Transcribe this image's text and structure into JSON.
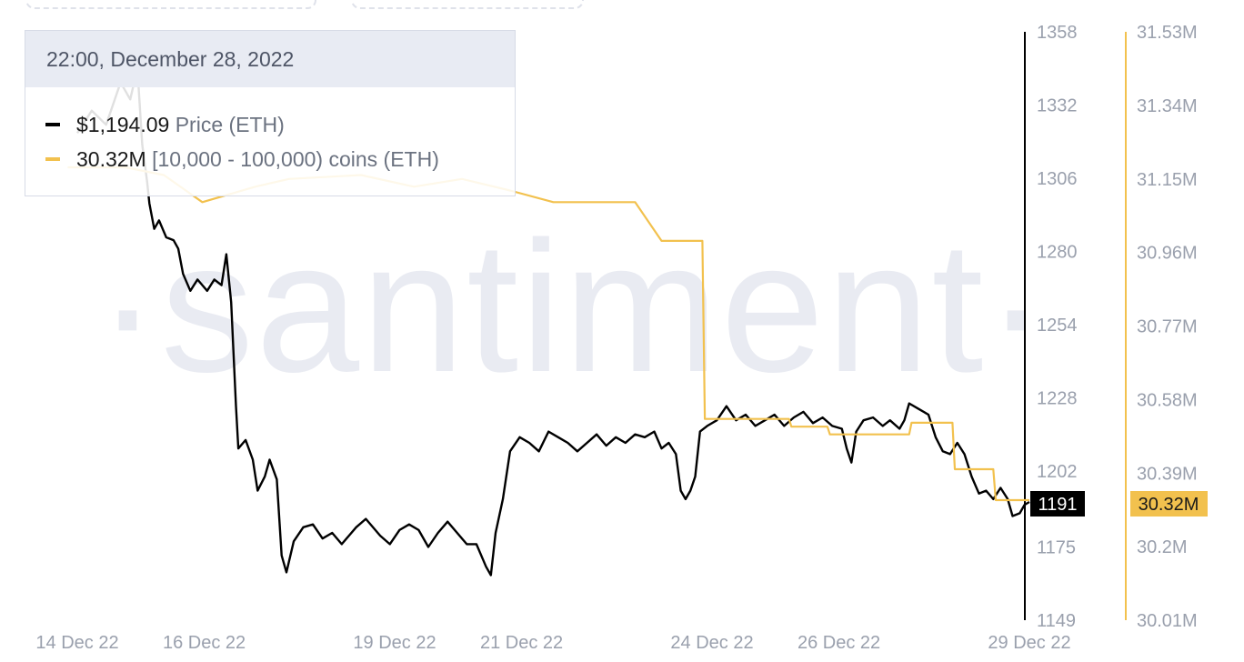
{
  "tooltip": {
    "datetime": "22:00, December 28, 2022",
    "rows": [
      {
        "value": "$1,194.09",
        "metric": "Price (ETH)",
        "color": "#000000"
      },
      {
        "value": "30.32M",
        "metric": "[10,000 - 100,000) coins (ETH)",
        "color": "#f2c14e"
      }
    ]
  },
  "watermark": "·santiment·",
  "chart_data": {
    "type": "line",
    "x_ticks": [
      "14 Dec 22",
      "16 Dec 22",
      "19 Dec 22",
      "21 Dec 22",
      "24 Dec 22",
      "26 Dec 22",
      "29 Dec 22"
    ],
    "x_range": [
      "2022-12-14",
      "2022-12-29"
    ],
    "left_axis": {
      "ticks": [
        "1358",
        "1332",
        "1306",
        "1280",
        "1254",
        "1228",
        "1202",
        "1175",
        "1149"
      ],
      "ylim": [
        1149,
        1358
      ],
      "color": "#000000"
    },
    "right_axis": {
      "ticks": [
        "31.53M",
        "31.34M",
        "31.15M",
        "30.96M",
        "30.77M",
        "30.58M",
        "30.39M",
        "30.2M",
        "30.01M"
      ],
      "ylim": [
        30.01,
        31.53
      ],
      "unit": "M",
      "color": "#f2c14e"
    },
    "current_values": {
      "price": "1191",
      "holders": "30.32M"
    },
    "series": [
      {
        "name": "Price (ETH)",
        "axis": "left",
        "color": "#000000",
        "points": [
          [
            0.0,
            1322
          ],
          [
            0.3,
            1330
          ],
          [
            0.6,
            1325
          ],
          [
            0.9,
            1340
          ],
          [
            1.1,
            1334
          ],
          [
            1.25,
            1345
          ],
          [
            1.35,
            1318
          ],
          [
            1.45,
            1305
          ],
          [
            1.5,
            1297
          ],
          [
            1.6,
            1288
          ],
          [
            1.7,
            1291
          ],
          [
            1.85,
            1285
          ],
          [
            2.0,
            1284
          ],
          [
            2.1,
            1281
          ],
          [
            2.2,
            1272
          ],
          [
            2.35,
            1266
          ],
          [
            2.5,
            1270
          ],
          [
            2.7,
            1266
          ],
          [
            2.85,
            1270
          ],
          [
            3.0,
            1268
          ],
          [
            3.1,
            1279
          ],
          [
            3.2,
            1262
          ],
          [
            3.3,
            1225
          ],
          [
            3.35,
            1210
          ],
          [
            3.5,
            1213
          ],
          [
            3.65,
            1206
          ],
          [
            3.75,
            1195
          ],
          [
            3.9,
            1200
          ],
          [
            4.0,
            1206
          ],
          [
            4.15,
            1199
          ],
          [
            4.25,
            1172
          ],
          [
            4.35,
            1166
          ],
          [
            4.5,
            1177
          ],
          [
            4.7,
            1182
          ],
          [
            4.9,
            1183
          ],
          [
            5.1,
            1178
          ],
          [
            5.3,
            1180
          ],
          [
            5.5,
            1176
          ],
          [
            5.8,
            1182
          ],
          [
            6.0,
            1185
          ],
          [
            6.3,
            1179
          ],
          [
            6.5,
            1176
          ],
          [
            6.7,
            1181
          ],
          [
            6.9,
            1183
          ],
          [
            7.1,
            1181
          ],
          [
            7.3,
            1175
          ],
          [
            7.5,
            1180
          ],
          [
            7.7,
            1184
          ],
          [
            7.9,
            1180
          ],
          [
            8.1,
            1176
          ],
          [
            8.3,
            1176
          ],
          [
            8.5,
            1168
          ],
          [
            8.6,
            1165
          ],
          [
            8.7,
            1180
          ],
          [
            8.85,
            1192
          ],
          [
            9.0,
            1209
          ],
          [
            9.2,
            1214
          ],
          [
            9.4,
            1212
          ],
          [
            9.6,
            1209
          ],
          [
            9.8,
            1216
          ],
          [
            10.0,
            1214
          ],
          [
            10.2,
            1212
          ],
          [
            10.4,
            1209
          ],
          [
            10.6,
            1212
          ],
          [
            10.8,
            1215
          ],
          [
            11.0,
            1211
          ],
          [
            11.2,
            1214
          ],
          [
            11.4,
            1212
          ],
          [
            11.6,
            1215
          ],
          [
            11.8,
            1214
          ],
          [
            12.0,
            1216
          ],
          [
            12.15,
            1210
          ],
          [
            12.3,
            1212
          ],
          [
            12.45,
            1208
          ],
          [
            12.55,
            1195
          ],
          [
            12.65,
            1192
          ],
          [
            12.75,
            1195
          ],
          [
            12.85,
            1200
          ],
          [
            12.95,
            1216
          ],
          [
            13.1,
            1218
          ],
          [
            13.3,
            1220
          ],
          [
            13.5,
            1225
          ],
          [
            13.7,
            1220
          ],
          [
            13.9,
            1222
          ],
          [
            14.1,
            1218
          ],
          [
            14.3,
            1220
          ],
          [
            14.5,
            1222
          ],
          [
            14.7,
            1218
          ],
          [
            14.9,
            1221
          ],
          [
            15.1,
            1223
          ],
          [
            15.3,
            1219
          ],
          [
            15.5,
            1221
          ],
          [
            15.7,
            1218
          ],
          [
            15.9,
            1217
          ],
          [
            16.0,
            1210
          ],
          [
            16.1,
            1205
          ],
          [
            16.2,
            1216
          ],
          [
            16.35,
            1220
          ],
          [
            16.55,
            1221
          ],
          [
            16.75,
            1218
          ],
          [
            16.9,
            1220
          ],
          [
            17.1,
            1217
          ],
          [
            17.2,
            1220
          ],
          [
            17.3,
            1226
          ],
          [
            17.5,
            1224
          ],
          [
            17.7,
            1222
          ],
          [
            17.85,
            1214
          ],
          [
            18.0,
            1209
          ],
          [
            18.15,
            1208
          ],
          [
            18.3,
            1212
          ],
          [
            18.45,
            1208
          ],
          [
            18.6,
            1200
          ],
          [
            18.75,
            1194
          ],
          [
            18.9,
            1195
          ],
          [
            19.05,
            1192
          ],
          [
            19.2,
            1196
          ],
          [
            19.35,
            1192
          ],
          [
            19.45,
            1186
          ],
          [
            19.6,
            1187
          ],
          [
            19.7,
            1190
          ],
          [
            19.8,
            1191
          ]
        ]
      },
      {
        "name": "[10,000 - 100,000) coins (ETH)",
        "axis": "right",
        "color": "#f2c14e",
        "points": [
          [
            -0.2,
            31.18
          ],
          [
            1.0,
            31.18
          ],
          [
            1.8,
            31.16
          ],
          [
            2.6,
            31.09
          ],
          [
            3.7,
            31.13
          ],
          [
            4.4,
            31.15
          ],
          [
            5.9,
            31.16
          ],
          [
            7.0,
            31.13
          ],
          [
            8.0,
            31.15
          ],
          [
            9.0,
            31.12
          ],
          [
            9.9,
            31.09
          ],
          [
            10.7,
            31.09
          ],
          [
            11.6,
            31.09
          ],
          [
            12.15,
            30.99
          ],
          [
            13.0,
            30.99
          ],
          [
            13.05,
            30.53
          ],
          [
            13.8,
            30.53
          ],
          [
            14.8,
            30.53
          ],
          [
            14.85,
            30.51
          ],
          [
            15.6,
            30.51
          ],
          [
            15.65,
            30.49
          ],
          [
            16.5,
            30.49
          ],
          [
            16.55,
            30.49
          ],
          [
            17.3,
            30.49
          ],
          [
            17.35,
            30.52
          ],
          [
            18.2,
            30.52
          ],
          [
            18.25,
            30.4
          ],
          [
            19.05,
            30.4
          ],
          [
            19.1,
            30.32
          ],
          [
            19.8,
            30.32
          ]
        ],
        "step": true
      }
    ]
  }
}
